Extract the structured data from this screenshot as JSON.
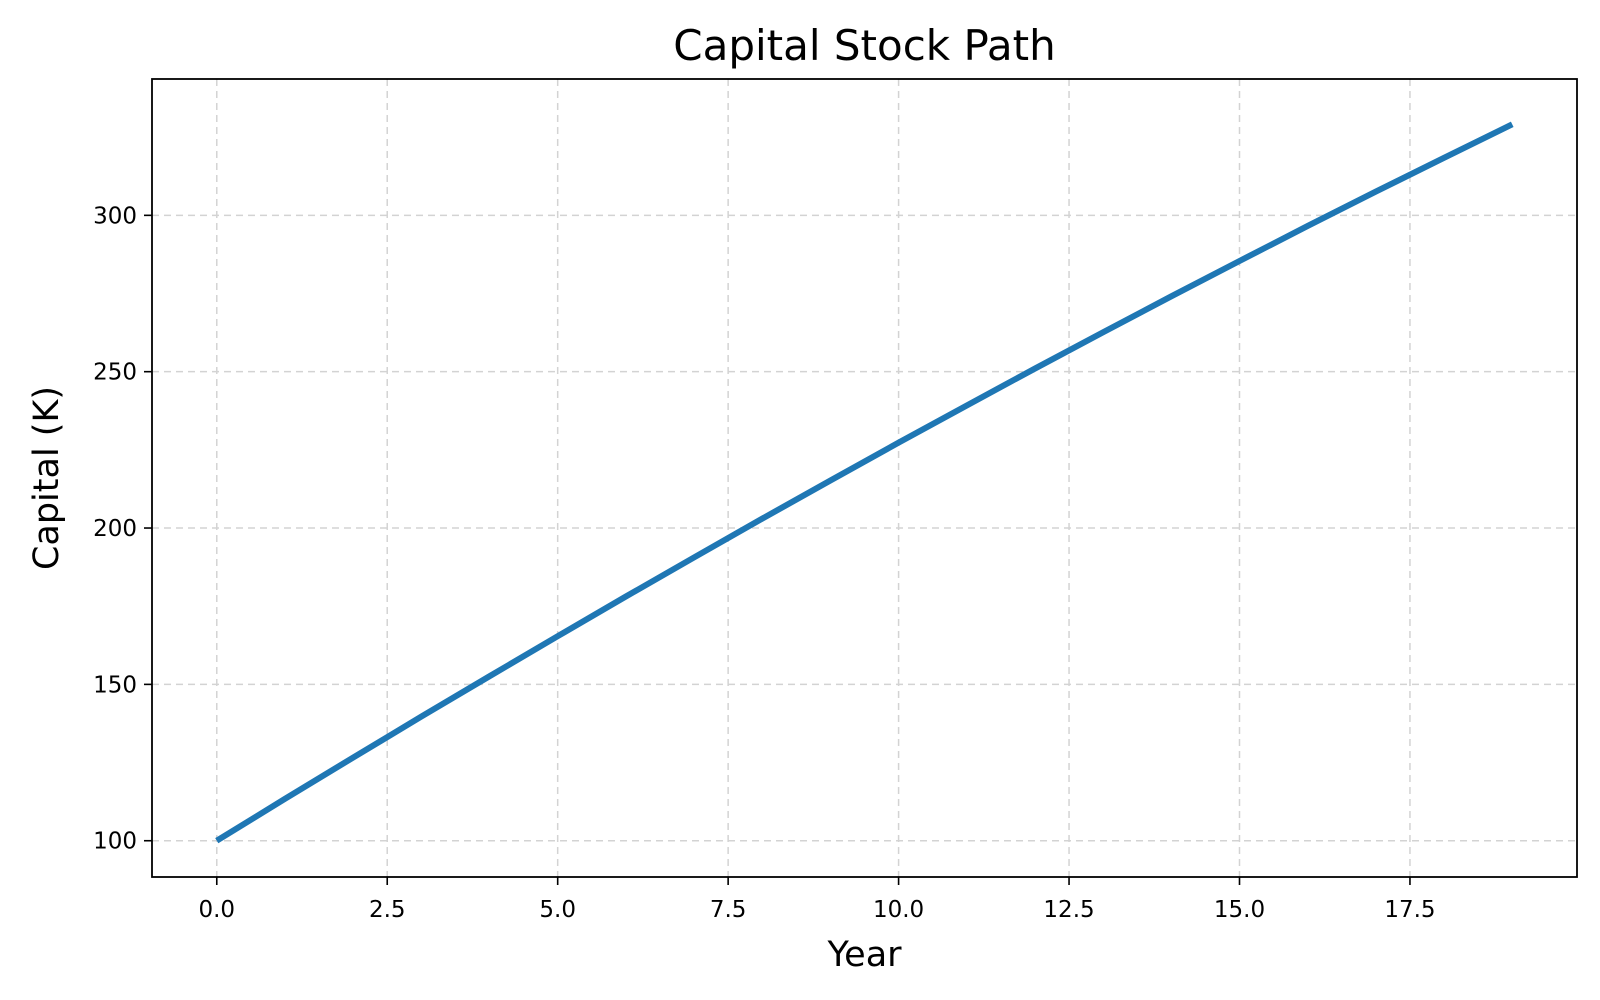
{
  "chart_data": {
    "type": "line",
    "title": "Capital Stock Path",
    "xlabel": "Year",
    "ylabel": "Capital (K)",
    "xlim": [
      -0.95,
      19.95
    ],
    "ylim": [
      88.4,
      343.6
    ],
    "grid": true,
    "x_ticks": [
      0.0,
      2.5,
      5.0,
      7.5,
      10.0,
      12.5,
      15.0,
      17.5
    ],
    "x_tick_labels": [
      "0.0",
      "2.5",
      "5.0",
      "7.5",
      "10.0",
      "12.5",
      "15.0",
      "17.5"
    ],
    "y_ticks": [
      100,
      150,
      200,
      250,
      300
    ],
    "y_tick_labels": [
      "100",
      "150",
      "200",
      "250",
      "300"
    ],
    "series": [
      {
        "color": "#1f77b4",
        "x": [
          0,
          1,
          2,
          3,
          4,
          5,
          6,
          7,
          8,
          9,
          10,
          11,
          12,
          13,
          14,
          15,
          16,
          17,
          18,
          19
        ],
        "y": [
          100.0,
          113.4,
          126.6,
          139.7,
          152.6,
          165.4,
          178.1,
          190.6,
          203.0,
          215.2,
          227.3,
          239.2,
          251.0,
          262.6,
          274.1,
          285.4,
          296.6,
          307.6,
          318.4,
          329.1
        ]
      }
    ]
  },
  "colors": {
    "line": "#1f77b4",
    "grid": "#d3d3d3",
    "axes": "#000000",
    "background": "#ffffff"
  }
}
